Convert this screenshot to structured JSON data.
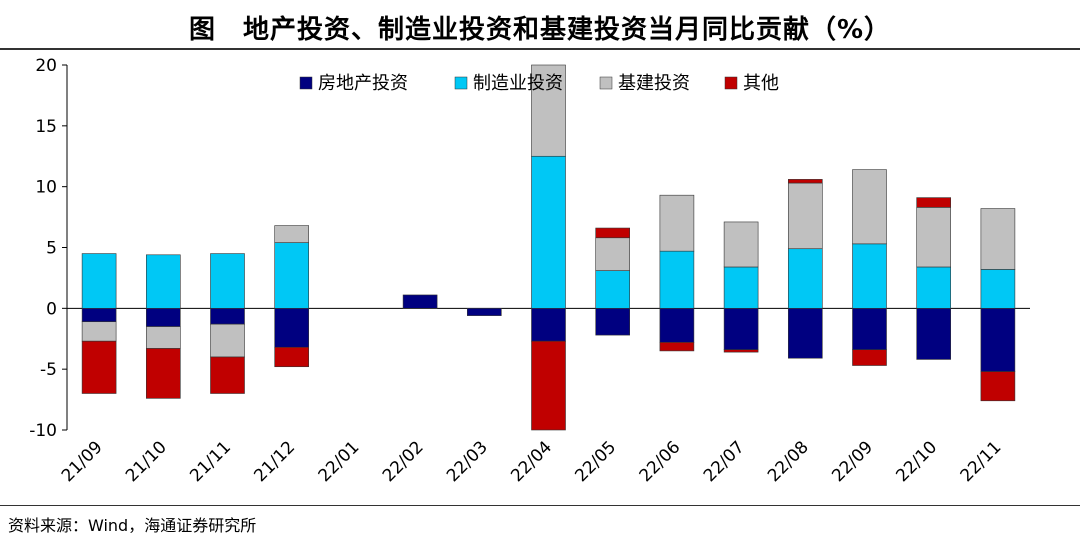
{
  "title": "图　地产投资、制造业投资和基建投资当月同比贡献（%）",
  "source": "资料来源：Wind，海通证券研究所",
  "chart_data": {
    "type": "bar",
    "stacked": true,
    "title": "图　地产投资、制造业投资和基建投资当月同比贡献（%）",
    "xlabel": "",
    "ylabel": "",
    "ylim": [
      -10,
      20
    ],
    "yticks": [
      20,
      15,
      10,
      5,
      0,
      -5,
      -10
    ],
    "legend_position": "top",
    "categories": [
      "21/09",
      "21/10",
      "21/11",
      "21/12",
      "22/01",
      "22/02",
      "22/03",
      "22/04",
      "22/05",
      "22/06",
      "22/07",
      "22/08",
      "22/09",
      "22/10",
      "22/11"
    ],
    "series": [
      {
        "name": "房地产投资",
        "color": "#000080",
        "values": [
          -1.1,
          -1.5,
          -1.3,
          -3.2,
          0,
          1.1,
          -0.6,
          -2.7,
          -2.2,
          -2.8,
          -3.4,
          -4.1,
          -3.4,
          -4.2,
          -5.2
        ]
      },
      {
        "name": "制造业投资",
        "color": "#00C8F5",
        "values": [
          4.5,
          4.4,
          4.5,
          5.4,
          0,
          0,
          0,
          12.5,
          3.1,
          4.7,
          3.4,
          4.9,
          5.3,
          3.4,
          3.2
        ]
      },
      {
        "name": "基建投资",
        "color": "#C0C0C0",
        "values": [
          -1.6,
          -1.8,
          -2.7,
          1.4,
          0,
          0,
          0,
          9.0,
          2.7,
          4.6,
          3.7,
          5.4,
          6.1,
          4.9,
          5.0
        ]
      },
      {
        "name": "其他",
        "color": "#C00000",
        "values": [
          -4.3,
          -4.1,
          -3.0,
          -1.6,
          0,
          0,
          0,
          -7.5,
          0.8,
          -0.7,
          -0.2,
          0.3,
          -1.3,
          0.8,
          -2.4
        ]
      }
    ]
  }
}
